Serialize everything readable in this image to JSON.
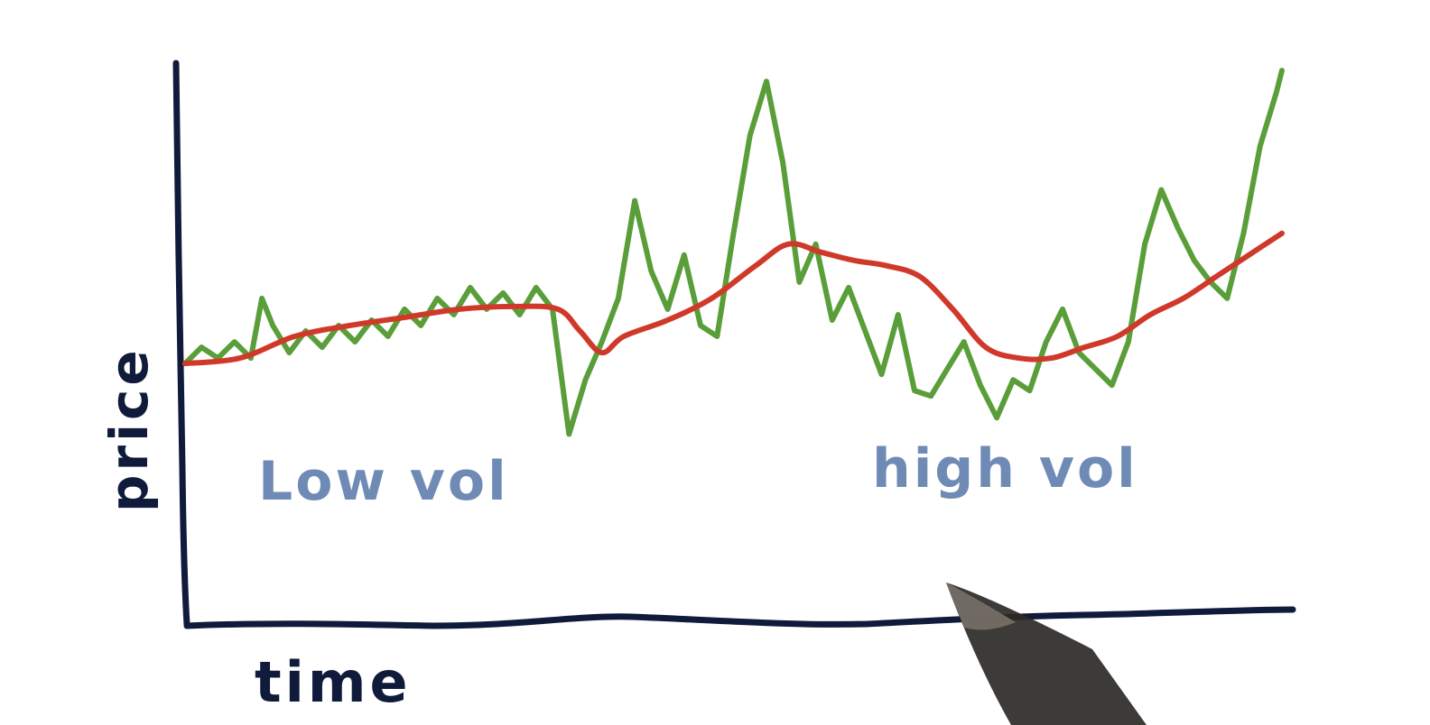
{
  "chart_data": {
    "type": "line",
    "xlabel": "time",
    "ylabel": "price",
    "annotations": [
      {
        "text": "Low vol",
        "region": "left"
      },
      {
        "text": "high vol",
        "region": "right"
      }
    ],
    "grid": false,
    "series": [
      {
        "color": "#5a9e3a",
        "style": "raw price (jagged)",
        "x": [
          0,
          1.5,
          3,
          4.5,
          6,
          7,
          8,
          9.5,
          11,
          12.5,
          14,
          15.5,
          17,
          18.5,
          20,
          21.5,
          23,
          24.5,
          26,
          27.5,
          29,
          30.5,
          32,
          33.5,
          35,
          36.5,
          38,
          39.5,
          41,
          42.5,
          44,
          45.5,
          47,
          48.5,
          50,
          51.5,
          53,
          54.5,
          56,
          57.5,
          59,
          60.5,
          62,
          63.5,
          65,
          66.5,
          68,
          69.5,
          71,
          72.5,
          74,
          75.5,
          77,
          78.5,
          80,
          81.5,
          83,
          84.5,
          86,
          87.5,
          89,
          90.5,
          92,
          93.5,
          95,
          96.5,
          98,
          99.5,
          100
        ],
        "y": [
          48,
          51,
          49,
          52,
          49,
          60,
          55,
          50,
          54,
          51,
          55,
          52,
          56,
          53,
          58,
          55,
          60,
          57,
          62,
          58,
          61,
          57,
          62,
          58,
          35,
          45,
          52,
          60,
          78,
          65,
          58,
          68,
          55,
          53,
          72,
          90,
          100,
          85,
          63,
          70,
          56,
          62,
          54,
          46,
          57,
          43,
          42,
          47,
          52,
          44,
          38,
          45,
          43,
          52,
          58,
          50,
          47,
          44,
          52,
          70,
          80,
          73,
          67,
          63,
          60,
          72,
          88,
          98,
          102
        ]
      },
      {
        "color": "#d0392a",
        "style": "smoothed trend",
        "x": [
          0,
          5,
          10,
          15,
          20,
          25,
          30,
          34,
          36,
          38,
          40,
          44,
          48,
          52,
          55,
          58,
          61,
          64,
          67,
          70,
          73,
          76,
          79,
          82,
          85,
          88,
          91,
          94,
          97,
          100
        ],
        "y": [
          48,
          49,
          53,
          55,
          56.5,
          58,
          58.5,
          58,
          54,
          50,
          53,
          56,
          60,
          66,
          70,
          68.5,
          67,
          66,
          64,
          58,
          51,
          49,
          49,
          51,
          53,
          57,
          60,
          64,
          68,
          72
        ]
      }
    ],
    "xlim": [
      0,
      100
    ],
    "ylim": [
      0,
      110
    ]
  }
}
